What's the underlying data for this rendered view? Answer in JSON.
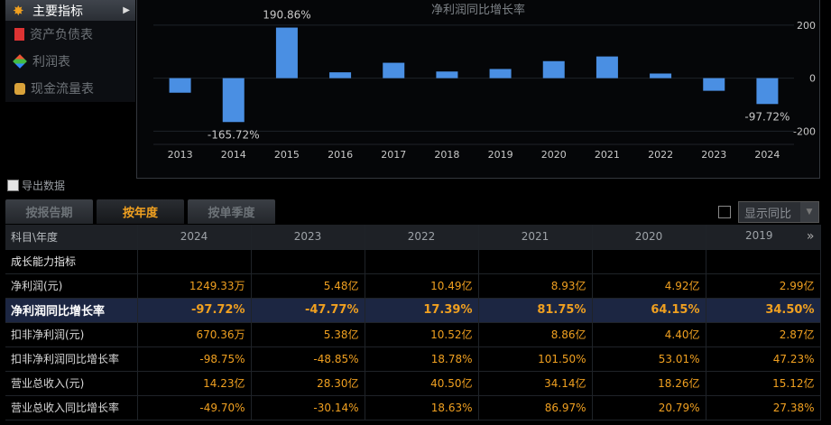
{
  "menu": {
    "items": [
      {
        "label": "主要指标",
        "icon": "star-icon"
      },
      {
        "label": "资产负债表",
        "icon": "document-icon"
      },
      {
        "label": "利润表",
        "icon": "cube-icon"
      },
      {
        "label": "现金流量表",
        "icon": "coins-icon"
      }
    ]
  },
  "chart_data": {
    "type": "bar",
    "title": "净利润同比增长率",
    "categories": [
      "2013",
      "2014",
      "2015",
      "2016",
      "2017",
      "2018",
      "2019",
      "2020",
      "2021",
      "2022",
      "2023",
      "2024"
    ],
    "values": [
      -55,
      -165.72,
      190.86,
      22,
      58,
      25,
      34.5,
      64.15,
      81.75,
      17.39,
      -47.77,
      -97.72
    ],
    "data_labels": {
      "2014": "-165.72%",
      "2015": "190.86%",
      "2024": "-97.72%"
    },
    "yticks": [
      200,
      0,
      -200
    ],
    "ylim": [
      -250,
      220
    ],
    "grid": true,
    "bar_color": "#4a8fe3"
  },
  "export_label": "导出数据",
  "tabs": [
    {
      "label": "按报告期"
    },
    {
      "label": "按年度"
    },
    {
      "label": "按单季度"
    }
  ],
  "compare": {
    "label": "显示同比"
  },
  "table": {
    "header": [
      "科目\\年度",
      "2024",
      "2023",
      "2022",
      "2021",
      "2020",
      "2019"
    ],
    "rows": [
      {
        "label": "成长能力指标",
        "values": [
          "",
          "",
          "",
          "",
          "",
          ""
        ]
      },
      {
        "label": "净利润(元)",
        "values": [
          "1249.33万",
          "5.48亿",
          "10.49亿",
          "8.93亿",
          "4.92亿",
          "2.99亿"
        ]
      },
      {
        "label": "净利润同比增长率",
        "values": [
          "-97.72%",
          "-47.77%",
          "17.39%",
          "81.75%",
          "64.15%",
          "34.50%"
        ]
      },
      {
        "label": "扣非净利润(元)",
        "values": [
          "670.36万",
          "5.38亿",
          "10.52亿",
          "8.86亿",
          "4.40亿",
          "2.87亿"
        ]
      },
      {
        "label": "扣非净利润同比增长率",
        "values": [
          "-98.75%",
          "-48.85%",
          "18.78%",
          "101.50%",
          "53.01%",
          "47.23%"
        ]
      },
      {
        "label": "营业总收入(元)",
        "values": [
          "14.23亿",
          "28.30亿",
          "40.50亿",
          "34.14亿",
          "18.26亿",
          "15.12亿"
        ]
      },
      {
        "label": "营业总收入同比增长率",
        "values": [
          "-49.70%",
          "-30.14%",
          "18.63%",
          "86.97%",
          "20.79%",
          "27.38%"
        ]
      }
    ]
  }
}
